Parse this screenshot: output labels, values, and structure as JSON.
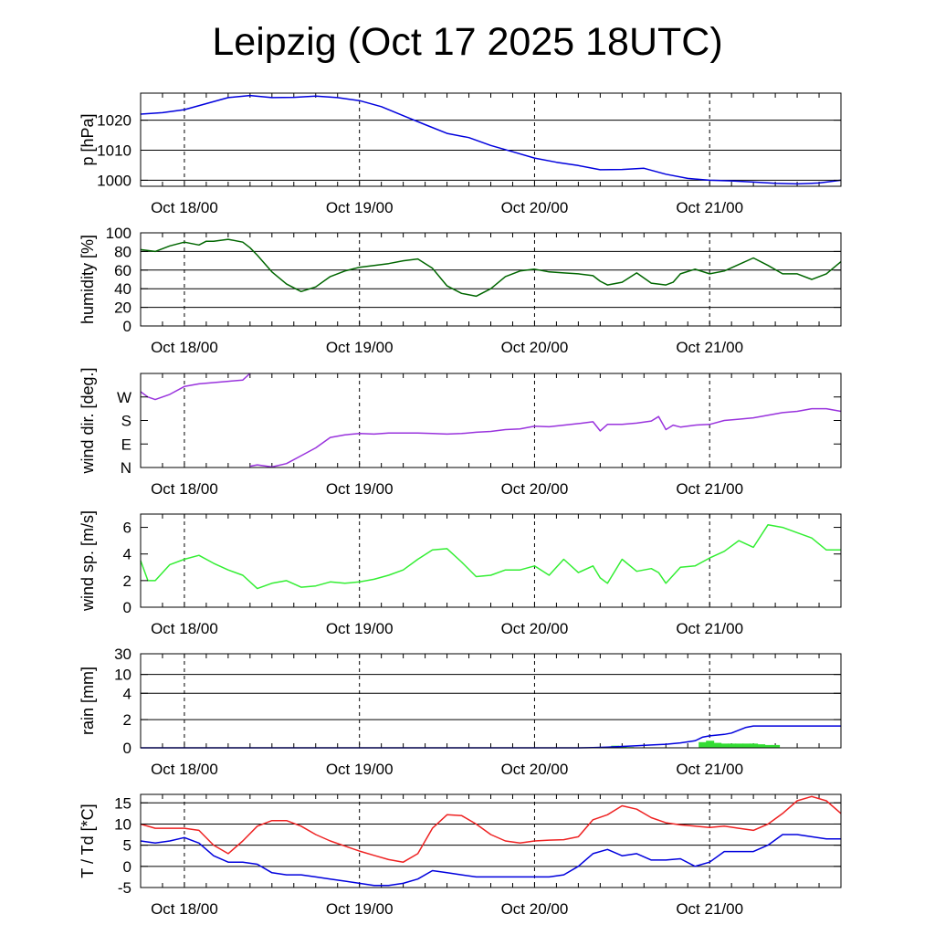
{
  "title": "Leipzig (Oct 17 2025 18UTC)",
  "x_ticks": [
    "Oct 18/00",
    "Oct 19/00",
    "Oct 20/00",
    "Oct 21/00"
  ],
  "chart_data": [
    {
      "id": "pressure",
      "type": "line",
      "ylabel": "p [hPa]",
      "x_unit": "hours since Oct 17 18UTC",
      "xlim": [
        0,
        96
      ],
      "ylim": [
        998,
        1029
      ],
      "yticks": [
        1000,
        1010,
        1020
      ],
      "grid_y": true,
      "series": [
        {
          "color": "#0000dd",
          "x": [
            0,
            3,
            6,
            9,
            12,
            15,
            18,
            21,
            24,
            27,
            30,
            33,
            36,
            39,
            42,
            45,
            48,
            51,
            54,
            57,
            60,
            63,
            66,
            69,
            72,
            75,
            78,
            81,
            84,
            87,
            90,
            93,
            96
          ],
          "values": [
            1022,
            1022.5,
            1023.5,
            1025.5,
            1027.5,
            1028.2,
            1027.5,
            1027.6,
            1028,
            1027.5,
            1026.5,
            1024.5,
            1021.5,
            1018.5,
            1015.6,
            1014.2,
            1011.6,
            1009.5,
            1007.4,
            1006,
            1004.9,
            1003.5,
            1003.6,
            1004,
            1002,
            1000.6,
            1000,
            999.8,
            999.4,
            999,
            998.8,
            999.1,
            1000
          ]
        }
      ]
    },
    {
      "id": "humidity",
      "type": "line",
      "ylabel": "humidity [%]",
      "x_unit": "hours since Oct 17 18UTC",
      "xlim": [
        0,
        96
      ],
      "ylim": [
        0,
        100
      ],
      "yticks": [
        0,
        20,
        40,
        60,
        80,
        100
      ],
      "grid_y": true,
      "series": [
        {
          "color": "#006600",
          "x": [
            0,
            1,
            2,
            4,
            6,
            8,
            9,
            10,
            12,
            14,
            15,
            16,
            18,
            20,
            22,
            24,
            26,
            28,
            30,
            32,
            34,
            36,
            38,
            40,
            42,
            44,
            46,
            48,
            50,
            52,
            54,
            56,
            58,
            60,
            62,
            63,
            64,
            66,
            68,
            70,
            72,
            73,
            74,
            76,
            78,
            80,
            82,
            84,
            86,
            88,
            90,
            92,
            94,
            96
          ],
          "values": [
            82,
            81,
            80,
            86,
            90,
            87,
            91,
            91,
            93,
            90,
            84,
            76,
            58,
            45,
            37,
            42,
            53,
            59,
            63,
            65,
            67,
            70,
            72,
            62,
            43,
            35,
            32,
            40,
            53,
            59,
            61,
            58,
            57,
            56,
            54,
            48,
            44,
            47,
            57,
            46,
            44,
            47,
            56,
            61,
            56,
            59,
            66,
            73,
            65,
            56,
            56,
            50,
            56,
            69
          ]
        }
      ]
    },
    {
      "id": "wind_direction",
      "type": "line",
      "ylabel": "wind dir. [deg.]",
      "x_unit": "hours since Oct 17 18UTC",
      "xlim": [
        0,
        96
      ],
      "ylim": [
        0,
        360
      ],
      "yticks": [
        0,
        90,
        180,
        270
      ],
      "ytick_labels": [
        "N",
        "E",
        "S",
        "W"
      ],
      "grid_y": false,
      "series": [
        {
          "color": "#9933dd",
          "x": [
            0,
            1,
            2,
            4,
            6,
            8,
            10,
            12,
            14,
            15
          ],
          "values": [
            290,
            270,
            260,
            280,
            310,
            320,
            325,
            330,
            335,
            360
          ]
        },
        {
          "color": "#9933dd",
          "x": [
            15,
            16,
            18,
            20,
            22,
            24,
            26,
            28,
            30,
            32,
            34,
            36,
            38,
            40,
            42,
            44,
            46,
            48,
            50,
            52,
            54,
            56,
            58,
            60,
            62,
            63,
            64,
            66,
            68,
            70,
            71,
            72,
            73,
            74,
            76,
            78,
            80,
            82,
            84,
            86,
            88,
            90,
            92,
            94,
            96
          ],
          "values": [
            5,
            10,
            2,
            15,
            45,
            75,
            115,
            125,
            130,
            128,
            132,
            132,
            132,
            130,
            128,
            130,
            135,
            138,
            145,
            148,
            158,
            156,
            162,
            168,
            175,
            140,
            165,
            165,
            170,
            178,
            195,
            145,
            162,
            155,
            162,
            165,
            180,
            185,
            190,
            200,
            210,
            215,
            225,
            225,
            215
          ]
        }
      ]
    },
    {
      "id": "wind_speed",
      "type": "line",
      "ylabel": "wind sp. [m/s]",
      "x_unit": "hours since Oct 17 18UTC",
      "xlim": [
        0,
        96
      ],
      "ylim": [
        0,
        7
      ],
      "yticks": [
        0.0,
        2.0,
        4.0,
        6.0
      ],
      "grid_y": false,
      "series": [
        {
          "color": "#33ee33",
          "x": [
            0,
            1,
            2,
            3,
            4,
            6,
            8,
            10,
            12,
            14,
            16,
            18,
            20,
            22,
            24,
            26,
            28,
            30,
            32,
            34,
            36,
            38,
            40,
            42,
            44,
            46,
            48,
            50,
            52,
            54,
            56,
            58,
            60,
            62,
            63,
            64,
            66,
            68,
            70,
            71,
            72,
            74,
            76,
            78,
            80,
            82,
            84,
            86,
            88,
            90,
            92,
            94,
            96
          ],
          "values": [
            3.5,
            2,
            2,
            2.6,
            3.2,
            3.6,
            3.9,
            3.3,
            2.8,
            2.4,
            1.4,
            1.8,
            2,
            1.5,
            1.6,
            1.9,
            1.8,
            1.9,
            2.1,
            2.4,
            2.8,
            3.6,
            4.3,
            4.4,
            3.4,
            2.3,
            2.4,
            2.8,
            2.8,
            3.1,
            2.4,
            3.6,
            2.6,
            3.1,
            2.2,
            1.8,
            3.6,
            2.7,
            2.9,
            2.6,
            1.8,
            3,
            3.1,
            3.7,
            4.2,
            5,
            4.5,
            6.2,
            6,
            5.6,
            5.2,
            4.3,
            4.3
          ]
        }
      ]
    },
    {
      "id": "rain",
      "type": "line",
      "ylabel": "rain [mm]",
      "x_unit": "hours since Oct 17 18UTC",
      "xlim": [
        0,
        96
      ],
      "ylim": [
        0,
        30
      ],
      "yscale": "nonlinear",
      "yticks": [
        0,
        2,
        4,
        10,
        30
      ],
      "grid_y": true,
      "bars": {
        "color": "#33dd33",
        "x": [
          64,
          65,
          66,
          67,
          77,
          78,
          79,
          80,
          81,
          82,
          83,
          84,
          85,
          86,
          87
        ],
        "values": [
          0.05,
          0.15,
          0.1,
          0.05,
          0.4,
          0.5,
          0.35,
          0.3,
          0.3,
          0.3,
          0.3,
          0.3,
          0.25,
          0.2,
          0.2
        ]
      },
      "series": [
        {
          "color": "#0000dd",
          "x": [
            0,
            20,
            40,
            60,
            62,
            64,
            66,
            68,
            70,
            72,
            74,
            76,
            77,
            78,
            80,
            81,
            82,
            83,
            84,
            85,
            86,
            88,
            90,
            92,
            94,
            96
          ],
          "values": [
            0,
            0,
            0,
            0,
            0.02,
            0.05,
            0.1,
            0.15,
            0.2,
            0.25,
            0.35,
            0.5,
            0.75,
            0.85,
            0.95,
            1.05,
            1.25,
            1.45,
            1.55,
            1.55,
            1.55,
            1.55,
            1.55,
            1.55,
            1.55,
            1.55
          ]
        }
      ]
    },
    {
      "id": "temperature",
      "type": "line",
      "ylabel": "T / Td [*C]",
      "x_unit": "hours since Oct 17 18UTC",
      "xlim": [
        0,
        96
      ],
      "ylim": [
        -5,
        17
      ],
      "yticks": [
        -5,
        0,
        5,
        10,
        15
      ],
      "grid_y": true,
      "series": [
        {
          "color": "#ee2222",
          "x": [
            0,
            2,
            4,
            6,
            8,
            10,
            12,
            14,
            16,
            18,
            20,
            22,
            24,
            26,
            28,
            30,
            32,
            34,
            36,
            38,
            40,
            42,
            44,
            46,
            48,
            50,
            52,
            54,
            56,
            58,
            60,
            62,
            64,
            66,
            68,
            70,
            72,
            74,
            76,
            78,
            80,
            82,
            84,
            86,
            88,
            90,
            92,
            94,
            96
          ],
          "values": [
            10,
            9,
            9,
            9,
            8.5,
            5,
            3,
            6,
            9.5,
            10.8,
            10.8,
            9.5,
            7.5,
            6,
            4.8,
            3.6,
            2.6,
            1.6,
            1,
            3,
            9,
            12.2,
            12,
            10,
            7.5,
            6,
            5.5,
            6,
            6.2,
            6.3,
            7,
            11,
            12.2,
            14.3,
            13.5,
            11.5,
            10.3,
            9.8,
            9.5,
            9.2,
            9.5,
            9,
            8.5,
            10,
            12.5,
            15.5,
            16.5,
            15.5,
            12.5
          ]
        },
        {
          "color": "#0000dd",
          "x": [
            0,
            2,
            4,
            6,
            8,
            10,
            12,
            14,
            16,
            18,
            20,
            22,
            24,
            26,
            28,
            30,
            32,
            34,
            36,
            38,
            40,
            42,
            44,
            46,
            48,
            50,
            52,
            54,
            56,
            58,
            60,
            62,
            64,
            66,
            68,
            70,
            72,
            74,
            76,
            78,
            80,
            82,
            84,
            86,
            88,
            90,
            92,
            94,
            96
          ],
          "values": [
            6,
            5.5,
            6,
            6.8,
            5.5,
            2.5,
            1,
            1,
            0.5,
            -1.5,
            -2,
            -2,
            -2.5,
            -3,
            -3.5,
            -4,
            -4.5,
            -4.5,
            -4,
            -3,
            -1,
            -1.5,
            -2,
            -2.5,
            -2.5,
            -2.5,
            -2.5,
            -2.5,
            -2.5,
            -2,
            0,
            3,
            4,
            2.5,
            3,
            1.5,
            1.5,
            1.8,
            0,
            1,
            3.5,
            3.5,
            3.5,
            5,
            7.5,
            7.5,
            7,
            6.5,
            6.5
          ]
        }
      ]
    }
  ]
}
